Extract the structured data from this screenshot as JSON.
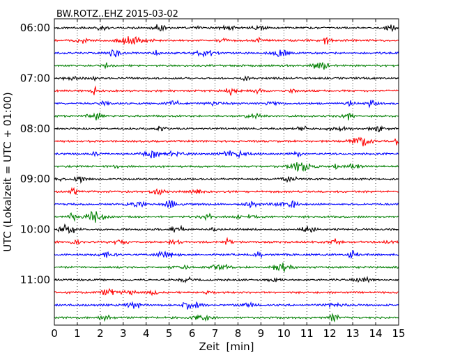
{
  "chart_data": {
    "type": "line",
    "title": "BW.ROTZ..EHZ 2015-03-02",
    "xlabel": "Zeit  [min]",
    "ylabel": "UTC (Lokalzeit = UTC + 01:00)",
    "xlim": [
      0,
      15
    ],
    "x_ticks": [
      "0",
      "1",
      "2",
      "3",
      "4",
      "5",
      "6",
      "7",
      "8",
      "9",
      "10",
      "11",
      "12",
      "13",
      "14",
      "15"
    ],
    "y_ticks": [
      "06:00",
      "07:00",
      "08:00",
      "09:00",
      "10:00",
      "11:00"
    ],
    "grid": "vertical dotted lines at each minute",
    "trace_interval_min": 15,
    "trace_colors": [
      "#000000",
      "#ff0000",
      "#0000ff",
      "#007f00"
    ],
    "series": [
      {
        "name": "06:00",
        "color": "#000000"
      },
      {
        "name": "06:15",
        "color": "#ff0000"
      },
      {
        "name": "06:30",
        "color": "#0000ff"
      },
      {
        "name": "06:45",
        "color": "#007f00"
      },
      {
        "name": "07:00",
        "color": "#000000"
      },
      {
        "name": "07:15",
        "color": "#ff0000"
      },
      {
        "name": "07:30",
        "color": "#0000ff"
      },
      {
        "name": "07:45",
        "color": "#007f00"
      },
      {
        "name": "08:00",
        "color": "#000000"
      },
      {
        "name": "08:15",
        "color": "#ff0000"
      },
      {
        "name": "08:30",
        "color": "#0000ff"
      },
      {
        "name": "08:45",
        "color": "#007f00"
      },
      {
        "name": "09:00",
        "color": "#000000"
      },
      {
        "name": "09:15",
        "color": "#ff0000"
      },
      {
        "name": "09:30",
        "color": "#0000ff"
      },
      {
        "name": "09:45",
        "color": "#007f00"
      },
      {
        "name": "10:00",
        "color": "#000000"
      },
      {
        "name": "10:15",
        "color": "#ff0000"
      },
      {
        "name": "10:30",
        "color": "#0000ff"
      },
      {
        "name": "10:45",
        "color": "#007f00"
      },
      {
        "name": "11:00",
        "color": "#000000"
      },
      {
        "name": "11:15",
        "color": "#ff0000"
      },
      {
        "name": "11:30",
        "color": "#0000ff"
      },
      {
        "name": "11:45",
        "color": "#007f00"
      }
    ]
  }
}
